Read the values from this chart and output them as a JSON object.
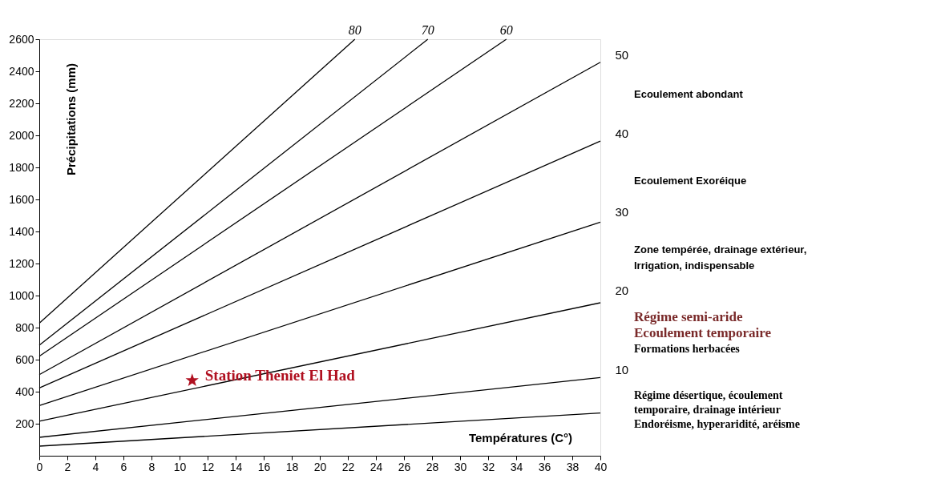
{
  "chart_data": {
    "type": "line",
    "xlabel": "Températures (C°)",
    "ylabel": "Précipitations (mm)",
    "xlim": [
      0,
      40
    ],
    "xticks": [
      0,
      2,
      4,
      6,
      8,
      10,
      12,
      14,
      16,
      18,
      20,
      22,
      24,
      26,
      28,
      30,
      32,
      34,
      36,
      38,
      40
    ],
    "ylim": [
      0,
      2600
    ],
    "yticks": [
      200,
      400,
      600,
      800,
      1000,
      1200,
      1400,
      1600,
      1800,
      2000,
      2200,
      2400,
      2600
    ],
    "y2lim": [
      -1,
      52
    ],
    "y2ticks": [
      10,
      20,
      30,
      40,
      50
    ],
    "grid": false,
    "marker": "none",
    "line_style": "solid",
    "series": [
      {
        "color": "#000000",
        "x": [
          0,
          40
        ],
        "values": [
          60,
          267
        ]
      },
      {
        "color": "#000000",
        "x": [
          0,
          40
        ],
        "values": [
          115,
          488
        ]
      },
      {
        "color": "#000000",
        "x": [
          0,
          40
        ],
        "values": [
          216,
          955
        ]
      },
      {
        "color": "#000000",
        "x": [
          0,
          40
        ],
        "values": [
          313,
          1458
        ]
      },
      {
        "color": "#000000",
        "x": [
          0,
          40
        ],
        "values": [
          423,
          1964
        ]
      },
      {
        "color": "#000000",
        "x": [
          0,
          40
        ],
        "values": [
          506,
          2456
        ]
      },
      {
        "color": "#000000",
        "x": [
          0,
          33.3
        ],
        "values": [
          621,
          2600
        ]
      },
      {
        "color": "#000000",
        "x": [
          0,
          27.7
        ],
        "values": [
          690,
          2600
        ]
      },
      {
        "color": "#000000",
        "x": [
          0,
          22.5
        ],
        "values": [
          828,
          2600
        ]
      },
      {
        "type": "scatter",
        "marker": "star",
        "name": "Station Theniet El Had",
        "color": "#b01020",
        "x": [
          10.9
        ],
        "values": [
          470
        ]
      }
    ],
    "annotations": [
      {
        "text": "80",
        "x": 22.5,
        "y": 2600
      },
      {
        "text": "70",
        "x": 27.7,
        "y": 2600
      },
      {
        "text": "60",
        "x": 33.3,
        "y": 2600
      },
      "Ecoulement abondant",
      "Ecoulement Exoréique",
      "Zone tempérée, drainage extérieur,",
      "Irrigation, indispensable",
      "Régime semi-aride",
      "Ecoulement temporaire",
      "Formations herbacées",
      "Régime désertique,  écoulement",
      "temporaire, drainage intérieur",
      "Endoréisme, hyperaridité, aréisme"
    ]
  }
}
